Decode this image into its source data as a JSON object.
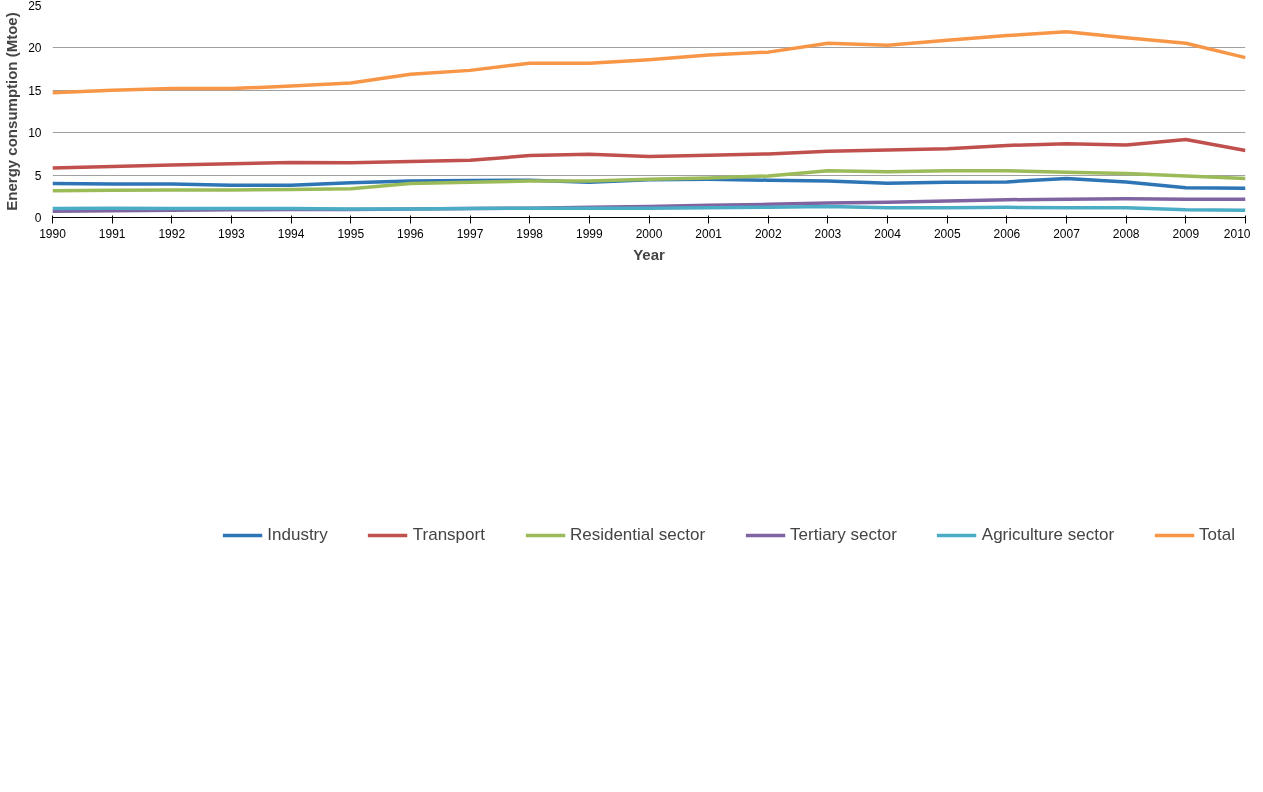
{
  "chart_data": {
    "type": "line",
    "xlabel": "Year",
    "ylabel": "Energy consumption (Mtoe)",
    "x": [
      1990,
      1991,
      1992,
      1993,
      1994,
      1995,
      1996,
      1997,
      1998,
      1999,
      2000,
      2001,
      2002,
      2003,
      2004,
      2005,
      2006,
      2007,
      2008,
      2009,
      2010
    ],
    "xlim": [
      1990,
      2010
    ],
    "xticks": [
      1990,
      1991,
      1992,
      1993,
      1994,
      1995,
      1996,
      1997,
      1998,
      1999,
      2000,
      2001,
      2002,
      2003,
      2004,
      2005,
      2006,
      2007,
      2008,
      2009,
      2010
    ],
    "ylim": [
      0,
      25
    ],
    "yticks": [
      0,
      5,
      10,
      15,
      20,
      25
    ],
    "grid": "y",
    "legend": "bottom",
    "line_style": "solid",
    "series": [
      {
        "name": "Industry",
        "color": "#2e75b6",
        "values": [
          4.0,
          3.95,
          3.95,
          3.8,
          3.8,
          4.1,
          4.3,
          4.35,
          4.4,
          4.15,
          4.45,
          4.5,
          4.4,
          4.3,
          4.05,
          4.15,
          4.2,
          4.6,
          4.2,
          3.5,
          3.45
        ]
      },
      {
        "name": "Transport",
        "color": "#c0504d",
        "values": [
          5.85,
          6.0,
          6.2,
          6.35,
          6.5,
          6.45,
          6.6,
          6.75,
          7.3,
          7.45,
          7.2,
          7.35,
          7.5,
          7.8,
          7.95,
          8.1,
          8.5,
          8.7,
          8.55,
          9.2,
          7.9
        ]
      },
      {
        "name": "Residential sector",
        "color": "#9bbb59",
        "values": [
          3.15,
          3.2,
          3.25,
          3.25,
          3.3,
          3.4,
          4.0,
          4.15,
          4.3,
          4.3,
          4.5,
          4.65,
          4.9,
          5.5,
          5.4,
          5.5,
          5.5,
          5.35,
          5.2,
          4.9,
          4.6
        ]
      },
      {
        "name": "Tertiary sector",
        "color": "#8064a2",
        "values": [
          0.75,
          0.8,
          0.85,
          0.9,
          0.95,
          0.95,
          1.0,
          1.05,
          1.1,
          1.2,
          1.3,
          1.45,
          1.55,
          1.7,
          1.8,
          1.95,
          2.1,
          2.15,
          2.2,
          2.15,
          2.15
        ]
      },
      {
        "name": "Agriculture sector",
        "color": "#4bacc6",
        "values": [
          1.05,
          1.1,
          1.05,
          1.05,
          1.05,
          1.0,
          1.0,
          1.05,
          1.1,
          1.1,
          1.1,
          1.15,
          1.2,
          1.3,
          1.15,
          1.15,
          1.2,
          1.15,
          1.15,
          0.9,
          0.85
        ]
      },
      {
        "name": "Total",
        "color": "#f79646",
        "values": [
          14.7,
          15.0,
          15.2,
          15.2,
          15.5,
          15.85,
          16.9,
          17.35,
          18.2,
          18.2,
          18.6,
          19.15,
          19.5,
          20.55,
          20.3,
          20.9,
          21.45,
          21.9,
          21.2,
          20.55,
          18.85
        ]
      }
    ]
  }
}
